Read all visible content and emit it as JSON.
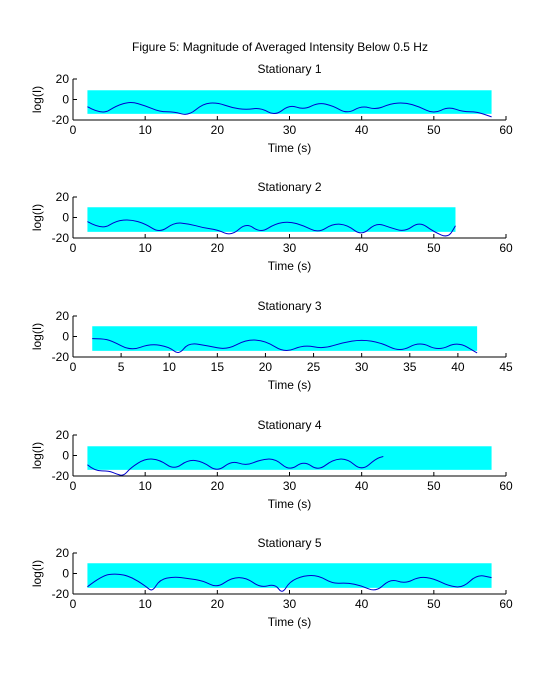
{
  "figure": {
    "title": "Figure 5: Magnitude of Averaged Intensity Below 0.5 Hz"
  },
  "colors": {
    "band": "#00ffff",
    "line": "#0000cc",
    "axis": "#000000",
    "background": "#ffffff"
  },
  "chart_data": [
    {
      "type": "line",
      "title": "Stationary 1",
      "xlabel": "Time (s)",
      "ylabel": "log(I)",
      "xlim": [
        0,
        60
      ],
      "ylim": [
        -20,
        20
      ],
      "xticks": [
        0,
        10,
        20,
        30,
        40,
        50,
        60
      ],
      "yticks": [
        -20,
        0,
        20
      ],
      "band": {
        "x": [
          2,
          58
        ],
        "y": [
          -14,
          9
        ]
      },
      "series": [
        {
          "x": [
            2,
            4,
            6,
            8,
            10,
            12,
            14,
            16,
            18,
            20,
            22,
            24,
            26,
            28,
            30,
            32,
            34,
            36,
            38,
            40,
            42,
            44,
            46,
            48,
            50,
            52,
            54,
            56,
            58
          ],
          "y": [
            -7,
            -15,
            -6,
            -2,
            -6,
            -12,
            -12,
            -16,
            -4,
            -3,
            -8,
            -10,
            -8,
            -16,
            -5,
            -10,
            -3,
            -6,
            -14,
            -6,
            -10,
            -4,
            -3,
            -7,
            -14,
            -7,
            -12,
            -12,
            -17
          ]
        }
      ]
    },
    {
      "type": "line",
      "title": "Stationary 2",
      "xlabel": "Time (s)",
      "ylabel": "log(I)",
      "xlim": [
        0,
        60
      ],
      "ylim": [
        -20,
        20
      ],
      "xticks": [
        0,
        10,
        20,
        30,
        40,
        50,
        60
      ],
      "yticks": [
        -20,
        0,
        20
      ],
      "band": {
        "x": [
          2,
          53
        ],
        "y": [
          -14,
          10
        ]
      },
      "series": [
        {
          "x": [
            2,
            4,
            6,
            8,
            10,
            12,
            14,
            16,
            18,
            20,
            22,
            24,
            26,
            28,
            30,
            32,
            34,
            36,
            38,
            40,
            42,
            44,
            46,
            48,
            50,
            52,
            53
          ],
          "y": [
            -4,
            -12,
            -3,
            -2,
            -6,
            -15,
            -5,
            -6,
            -10,
            -12,
            -18,
            -5,
            -15,
            -6,
            -4,
            -8,
            -15,
            -6,
            -7,
            -18,
            -5,
            -10,
            -14,
            -4,
            -14,
            -20,
            -8
          ]
        }
      ]
    },
    {
      "type": "line",
      "title": "Stationary 3",
      "xlabel": "Time (s)",
      "ylabel": "log(I)",
      "xlim": [
        0,
        45
      ],
      "ylim": [
        -20,
        20
      ],
      "xticks": [
        0,
        5,
        10,
        15,
        20,
        25,
        30,
        35,
        40,
        45
      ],
      "yticks": [
        -20,
        0,
        20
      ],
      "band": {
        "x": [
          2,
          42
        ],
        "y": [
          -14,
          10
        ]
      },
      "series": [
        {
          "x": [
            2,
            3,
            4,
            6,
            8,
            10,
            11,
            12,
            14,
            16,
            18,
            20,
            22,
            24,
            26,
            28,
            30,
            32,
            34,
            36,
            38,
            40,
            42
          ],
          "y": [
            -2,
            -2,
            -4,
            -14,
            -7,
            -10,
            -18,
            -6,
            -9,
            -13,
            -3,
            -4,
            -16,
            -8,
            -12,
            -6,
            -3,
            -6,
            -15,
            -5,
            -14,
            -5,
            -16
          ]
        }
      ]
    },
    {
      "type": "line",
      "title": "Stationary 4",
      "xlabel": "Time (s)",
      "ylabel": "log(I)",
      "xlim": [
        0,
        60
      ],
      "ylim": [
        -20,
        20
      ],
      "xticks": [
        0,
        10,
        20,
        30,
        40,
        50,
        60
      ],
      "yticks": [
        -20,
        0,
        20
      ],
      "band": {
        "x": [
          2,
          58
        ],
        "y": [
          -14,
          9
        ]
      },
      "series": [
        {
          "x": [
            2,
            3,
            5,
            6,
            7,
            8,
            10,
            12,
            14,
            16,
            18,
            20,
            22,
            24,
            26,
            28,
            30,
            32,
            34,
            36,
            38,
            40,
            42,
            43
          ],
          "y": [
            -9,
            -15,
            -15,
            -18,
            -20,
            -12,
            -3,
            -4,
            -14,
            -4,
            -6,
            -16,
            -5,
            -10,
            -4,
            -3,
            -15,
            -5,
            -15,
            -4,
            -3,
            -15,
            -3,
            -1
          ]
        }
      ]
    },
    {
      "type": "line",
      "title": "Stationary 5",
      "xlabel": "Time (s)",
      "ylabel": "log(I)",
      "xlim": [
        0,
        60
      ],
      "ylim": [
        -20,
        20
      ],
      "xticks": [
        0,
        10,
        20,
        30,
        40,
        50,
        60
      ],
      "yticks": [
        -20,
        0,
        20
      ],
      "band": {
        "x": [
          2,
          58
        ],
        "y": [
          -14,
          10
        ]
      },
      "series": [
        {
          "x": [
            2,
            4,
            6,
            8,
            10,
            11,
            12,
            14,
            16,
            18,
            20,
            22,
            24,
            26,
            28,
            29,
            30,
            32,
            34,
            36,
            38,
            40,
            42,
            44,
            46,
            48,
            50,
            52,
            54,
            56,
            58
          ],
          "y": [
            -13,
            -2,
            0,
            -3,
            -12,
            -18,
            -6,
            -3,
            -5,
            -7,
            -14,
            -4,
            -4,
            -14,
            -10,
            -20,
            -8,
            -2,
            -2,
            -10,
            -9,
            -12,
            -18,
            -5,
            -10,
            -3,
            -5,
            -12,
            -14,
            -1,
            -4
          ]
        }
      ]
    }
  ]
}
